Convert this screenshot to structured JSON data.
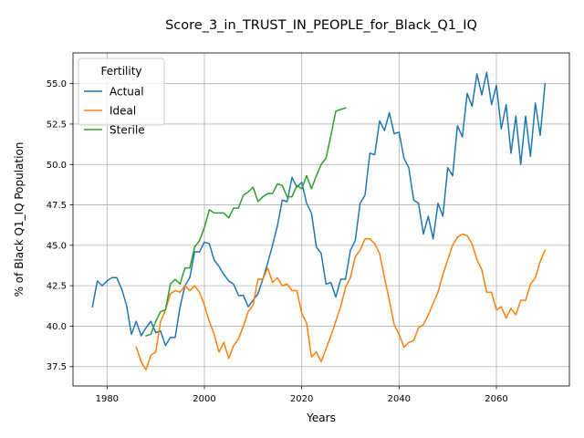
{
  "chart_data": {
    "type": "line",
    "title": "Score_3_in_TRUST_IN_PEOPLE_for_Black_Q1_IQ",
    "xlabel": "Years",
    "ylabel": "% of Black Q1_IQ Population",
    "xlim": [
      1973,
      2075
    ],
    "ylim": [
      36.3,
      56.9
    ],
    "xticks": [
      1980,
      2000,
      2020,
      2040,
      2060
    ],
    "yticks": [
      37.5,
      40.0,
      42.5,
      45.0,
      47.5,
      50.0,
      52.5,
      55.0
    ],
    "ytick_labels": [
      "37.5",
      "40.0",
      "42.5",
      "45.0",
      "47.5",
      "50.0",
      "52.5",
      "55.0"
    ],
    "grid": true,
    "legend": {
      "title": "Fertility",
      "placement": "top-left"
    },
    "series": [
      {
        "name": "Actual",
        "color": "#1f77b4",
        "x": [
          1977,
          1978,
          1979,
          1980,
          1981,
          1982,
          1983,
          1984,
          1985,
          1986,
          1987,
          1988,
          1989,
          1990,
          1991,
          1992,
          1993,
          1994,
          1995,
          1996,
          1997,
          1998,
          1999,
          2000,
          2001,
          2002,
          2003,
          2004,
          2005,
          2006,
          2007,
          2008,
          2009,
          2010,
          2011,
          2012,
          2013,
          2014,
          2015,
          2016,
          2017,
          2018,
          2019,
          2020,
          2021,
          2022,
          2023,
          2024,
          2025,
          2026,
          2027,
          2028,
          2029,
          2030,
          2031,
          2032,
          2033,
          2034,
          2035,
          2036,
          2037,
          2038,
          2039,
          2040,
          2041,
          2042,
          2043,
          2044,
          2045,
          2046,
          2047,
          2048,
          2049,
          2050,
          2051,
          2052,
          2053,
          2054,
          2055,
          2056,
          2057,
          2058,
          2059,
          2060,
          2061,
          2062,
          2063,
          2064,
          2065,
          2066,
          2067,
          2068,
          2069,
          2070
        ],
        "y": [
          41.2,
          42.8,
          42.5,
          42.8,
          43.0,
          43.0,
          42.3,
          41.3,
          39.5,
          40.3,
          39.4,
          39.9,
          40.3,
          39.6,
          39.7,
          38.8,
          39.3,
          39.3,
          41.2,
          42.5,
          43.0,
          44.6,
          44.6,
          45.2,
          45.1,
          44.1,
          43.7,
          43.2,
          42.8,
          42.6,
          41.9,
          41.9,
          41.2,
          41.6,
          42.0,
          42.9,
          43.9,
          45.0,
          46.2,
          47.8,
          47.7,
          49.2,
          48.6,
          48.9,
          47.6,
          47.0,
          44.9,
          44.5,
          42.6,
          42.7,
          41.8,
          42.9,
          42.9,
          44.7,
          45.3,
          47.6,
          48.1,
          50.7,
          50.6,
          52.7,
          52.1,
          53.2,
          51.9,
          52.0,
          50.4,
          49.8,
          47.8,
          47.6,
          45.7,
          46.8,
          45.4,
          47.6,
          46.8,
          49.8,
          49.3,
          52.4,
          51.7,
          54.4,
          53.6,
          55.6,
          54.3,
          55.7,
          53.7,
          54.9,
          52.2,
          53.7,
          50.7,
          53.0,
          50.0,
          53.0,
          50.5,
          53.8,
          51.8,
          55.0
        ]
      },
      {
        "name": "Ideal",
        "color": "#ff7f0e",
        "x": [
          1986,
          1987,
          1988,
          1989,
          1990,
          1991,
          1992,
          1993,
          1994,
          1995,
          1996,
          1997,
          1998,
          1999,
          2000,
          2001,
          2002,
          2003,
          2004,
          2005,
          2006,
          2007,
          2008,
          2009,
          2010,
          2011,
          2012,
          2013,
          2014,
          2015,
          2016,
          2017,
          2018,
          2019,
          2020,
          2021,
          2022,
          2023,
          2024,
          2025,
          2026,
          2027,
          2028,
          2029,
          2030,
          2031,
          2032,
          2033,
          2034,
          2035,
          2036,
          2037,
          2038,
          2039,
          2040,
          2041,
          2042,
          2043,
          2044,
          2045,
          2046,
          2047,
          2048,
          2049,
          2050,
          2051,
          2052,
          2053,
          2054,
          2055,
          2056,
          2057,
          2058,
          2059,
          2060,
          2061,
          2062,
          2063,
          2064,
          2065,
          2066,
          2067,
          2068,
          2069,
          2070
        ],
        "y": [
          38.7,
          37.8,
          37.3,
          38.2,
          38.4,
          40.3,
          41.0,
          42.0,
          42.2,
          42.1,
          42.5,
          42.2,
          42.5,
          42.1,
          41.3,
          40.3,
          39.5,
          38.4,
          39.0,
          38.0,
          38.8,
          39.2,
          40.0,
          40.9,
          41.3,
          42.9,
          42.9,
          43.6,
          42.7,
          43.0,
          42.5,
          42.6,
          42.2,
          42.2,
          40.8,
          40.2,
          38.1,
          38.4,
          37.8,
          38.6,
          39.4,
          40.3,
          41.2,
          42.4,
          43.0,
          44.3,
          44.7,
          45.4,
          45.4,
          45.1,
          44.5,
          43.0,
          41.6,
          40.1,
          39.5,
          38.7,
          39.0,
          39.1,
          39.9,
          40.1,
          40.7,
          41.4,
          42.1,
          43.2,
          44.1,
          45.0,
          45.5,
          45.7,
          45.6,
          45.1,
          44.1,
          43.5,
          42.1,
          42.1,
          41.0,
          41.2,
          40.5,
          41.1,
          40.7,
          41.6,
          41.6,
          42.6,
          43.0,
          44.0,
          44.7
        ]
      },
      {
        "name": "Sterile",
        "color": "#2ca02c",
        "x": [
          1988,
          1989,
          1990,
          1991,
          1992,
          1993,
          1994,
          1995,
          1996,
          1997,
          1998,
          1999,
          2000,
          2001,
          2002,
          2003,
          2004,
          2005,
          2006,
          2007,
          2008,
          2009,
          2010,
          2011,
          2012,
          2013,
          2014,
          2015,
          2016,
          2017,
          2018,
          2019,
          2020,
          2021,
          2022,
          2023,
          2024,
          2025,
          2026,
          2027,
          2028,
          2029
        ],
        "y": [
          39.4,
          39.5,
          40.3,
          40.9,
          41.0,
          42.6,
          42.9,
          42.6,
          43.6,
          43.6,
          44.9,
          45.3,
          46.1,
          47.2,
          47.0,
          47.0,
          47.0,
          46.7,
          47.3,
          47.3,
          48.1,
          48.3,
          48.6,
          47.7,
          48.0,
          48.2,
          48.2,
          48.8,
          48.7,
          48.0,
          48.0,
          48.7,
          48.5,
          49.3,
          48.5,
          49.3,
          50.0,
          50.4,
          51.8,
          53.3,
          53.4,
          53.5
        ]
      }
    ]
  }
}
